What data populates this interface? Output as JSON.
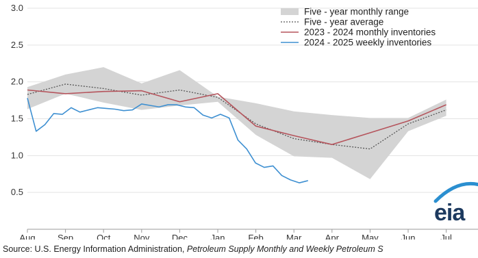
{
  "chart_data": {
    "type": "line",
    "title": "",
    "xlabel": "",
    "ylabel": "",
    "ylim": [
      0,
      3.0
    ],
    "yticks": [
      "3.0",
      "2.5",
      "2.0",
      "1.5",
      "1.0",
      "0.5"
    ],
    "xticks": [
      "Aug",
      "Sep",
      "Oct",
      "Nov",
      "Dec",
      "Jan",
      "Feb",
      "Mar",
      "Apr",
      "May",
      "Jun",
      "Jul"
    ],
    "grid": "horizontal",
    "legend_position": "top-right",
    "range": {
      "name": "Five - year monthly range",
      "x": [
        0,
        1,
        2,
        3,
        4,
        5,
        6,
        7,
        8,
        9,
        10,
        11
      ],
      "low": [
        1.63,
        1.84,
        1.72,
        1.62,
        1.68,
        1.73,
        1.28,
        0.99,
        0.97,
        0.68,
        1.33,
        1.54
      ],
      "high": [
        1.93,
        2.1,
        2.2,
        1.98,
        2.16,
        1.8,
        1.71,
        1.6,
        1.55,
        1.51,
        1.51,
        1.76
      ],
      "color": "#d4d4d4"
    },
    "series": [
      {
        "name": "Five - year average",
        "style": "dotted",
        "color": "#555555",
        "x": [
          0,
          1,
          2,
          3,
          4,
          5,
          6,
          7,
          8,
          9,
          10,
          11
        ],
        "y": [
          1.83,
          1.97,
          1.91,
          1.82,
          1.89,
          1.79,
          1.43,
          1.23,
          1.15,
          1.09,
          1.43,
          1.62
        ]
      },
      {
        "name": "2023 - 2024 monthly inventories",
        "style": "solid",
        "color": "#b5545c",
        "x": [
          0,
          1,
          2,
          3,
          4,
          5,
          6,
          7,
          8,
          9,
          10,
          11
        ],
        "y": [
          1.89,
          1.84,
          1.87,
          1.88,
          1.73,
          1.84,
          1.4,
          1.27,
          1.15,
          1.31,
          1.47,
          1.69
        ]
      },
      {
        "name": "2024 - 2025 weekly inventories",
        "style": "solid",
        "color": "#3d8fd1",
        "x": [
          0,
          0.23,
          0.46,
          0.69,
          0.92,
          1.15,
          1.38,
          1.61,
          1.84,
          2.07,
          2.3,
          2.53,
          2.76,
          3.0,
          3.23,
          3.46,
          3.69,
          3.92,
          4.15,
          4.38,
          4.61,
          4.84,
          5.07,
          5.3,
          5.53,
          5.76,
          5.99,
          6.22,
          6.45,
          6.68,
          6.91,
          7.14,
          7.37
        ],
        "y": [
          1.78,
          1.33,
          1.42,
          1.57,
          1.56,
          1.65,
          1.59,
          1.62,
          1.65,
          1.64,
          1.63,
          1.61,
          1.62,
          1.7,
          1.68,
          1.66,
          1.69,
          1.69,
          1.66,
          1.65,
          1.55,
          1.51,
          1.56,
          1.51,
          1.21,
          1.09,
          0.9,
          0.84,
          0.86,
          0.73,
          0.67,
          0.63,
          0.66
        ]
      }
    ]
  },
  "logo": {
    "text": "eia"
  },
  "source": {
    "prefix": "Source: U.S. Energy Information Administration, ",
    "publication": "Petroleum Supply Monthly and Weekly Petroleum S"
  }
}
